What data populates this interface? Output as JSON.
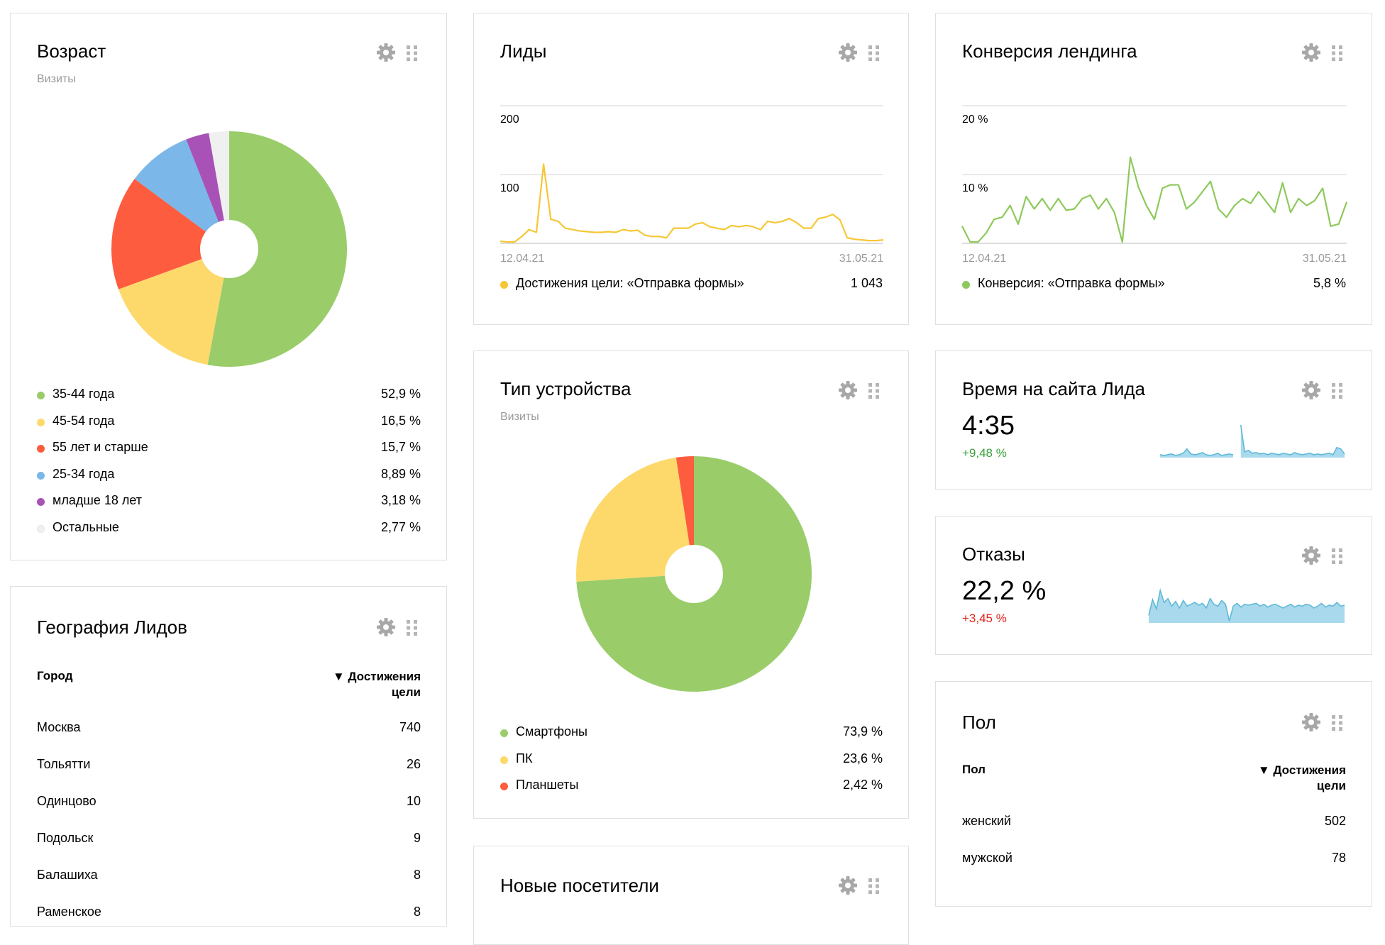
{
  "widgets": {
    "age": {
      "title": "Возраст",
      "subtitle": "Визиты",
      "chart_data": {
        "type": "pie",
        "categories": [
          "35-44 года",
          "45-54 года",
          "55 лет и старше",
          "25-34 года",
          "младше 18 лет",
          "Остальные"
        ],
        "values": [
          52.9,
          16.5,
          15.7,
          8.89,
          3.18,
          2.77
        ],
        "colors": [
          "#9acd6a",
          "#fdd96c",
          "#fd5c3f",
          "#7bb7e8",
          "#a852b8",
          "#f0f0f0"
        ]
      },
      "legend": [
        {
          "label": "35-44 года",
          "value": "52,9 %"
        },
        {
          "label": "45-54 года",
          "value": "16,5 %"
        },
        {
          "label": "55 лет и старше",
          "value": "15,7 %"
        },
        {
          "label": "25-34 года",
          "value": "8,89 %"
        },
        {
          "label": "младше 18 лет",
          "value": "3,18 %"
        },
        {
          "label": "Остальные",
          "value": "2,77 %"
        }
      ]
    },
    "geo": {
      "title": "География Лидов",
      "col_city": "Город",
      "col_goal_line1": "▼ Достижения",
      "col_goal_line2": "цели",
      "rows": [
        {
          "city": "Москва",
          "value": "740"
        },
        {
          "city": "Тольятти",
          "value": "26"
        },
        {
          "city": "Одинцово",
          "value": "10"
        },
        {
          "city": "Подольск",
          "value": "9"
        },
        {
          "city": "Балашиха",
          "value": "8"
        },
        {
          "city": "Раменское",
          "value": "8"
        }
      ]
    },
    "leads": {
      "title": "Лиды",
      "chart_data": {
        "type": "line",
        "y_ticks": [
          "200",
          "100"
        ],
        "ylim": [
          0,
          200
        ],
        "x_start": "12.04.21",
        "x_end": "31.05.21",
        "color": "#f6c735",
        "values": [
          3,
          2,
          2,
          10,
          20,
          16,
          115,
          35,
          32,
          22,
          20,
          18,
          17,
          16,
          16,
          17,
          16,
          20,
          18,
          19,
          12,
          10,
          10,
          8,
          22,
          22,
          22,
          28,
          30,
          24,
          22,
          20,
          26,
          24,
          26,
          24,
          20,
          32,
          30,
          32,
          36,
          30,
          22,
          22,
          36,
          38,
          42,
          34,
          8,
          6,
          5,
          4,
          4,
          5
        ]
      },
      "legend_label": "Достижения цели: «Отправка формы»",
      "legend_value": "1 043"
    },
    "conversion": {
      "title": "Конверсия лендинга",
      "chart_data": {
        "type": "line",
        "y_ticks": [
          "20 %",
          "10 %"
        ],
        "ylim": [
          0,
          20
        ],
        "x_start": "12.04.21",
        "x_end": "31.05.21",
        "color": "#8dc95a",
        "values": [
          2.5,
          0.2,
          0.2,
          1.5,
          3.5,
          3.8,
          5.5,
          2.8,
          6.8,
          5,
          6.5,
          4.8,
          6.5,
          4.8,
          5,
          6.5,
          7,
          5,
          6.5,
          4.5,
          0.2,
          12.5,
          8.2,
          5.5,
          3.5,
          8,
          8.5,
          8.5,
          5,
          6,
          7.5,
          9,
          5,
          3.8,
          5.5,
          6.5,
          5.8,
          7.5,
          6,
          4.5,
          8.8,
          4.5,
          6.5,
          5.5,
          6.2,
          8,
          2.5,
          2.8,
          6
        ]
      },
      "legend_label": "Конверсия: «Отправка формы»",
      "legend_value": "5,8 %"
    },
    "device": {
      "title": "Тип устройства",
      "subtitle": "Визиты",
      "chart_data": {
        "type": "pie",
        "categories": [
          "Смартфоны",
          "ПК",
          "Планшеты"
        ],
        "values": [
          73.9,
          23.6,
          2.42
        ],
        "colors": [
          "#9acd6a",
          "#fdd96c",
          "#fd5c3f"
        ]
      },
      "legend": [
        {
          "label": "Смартфоны",
          "value": "73,9 %"
        },
        {
          "label": "ПК",
          "value": "23,6 %"
        },
        {
          "label": "Планшеты",
          "value": "2,42 %"
        }
      ]
    },
    "time": {
      "title": "Время на сайта Лида",
      "value": "4:35",
      "delta": "+9,48 %",
      "delta_color": "#3aa33a",
      "chart_data": {
        "type": "area",
        "color": "#5fb9d8",
        "values": [
          0.4,
          0.3,
          0.4,
          0.5,
          0.3,
          0.4,
          0.6,
          1.2,
          0.5,
          0.4,
          0.5,
          0.7,
          0.4,
          0.3,
          0.4,
          0.6,
          0.3,
          0.4,
          0.5,
          0.4,
          null,
          4.5,
          0.8,
          1.0,
          0.6,
          0.7,
          0.5,
          0.6,
          0.4,
          0.6,
          0.5,
          0.4,
          0.6,
          0.5,
          0.4,
          0.7,
          0.5,
          0.4,
          0.5,
          0.6,
          0.4,
          0.5,
          0.4,
          0.5,
          0.6,
          0.4,
          1.4,
          1.2,
          0.5
        ]
      }
    },
    "bounce": {
      "title": "Отказы",
      "value": "22,2 %",
      "delta": "+3,45 %",
      "delta_color": "#e0251b",
      "chart_data": {
        "type": "area",
        "color": "#5fb9d8",
        "values": [
          0.8,
          2.5,
          1.5,
          3.5,
          2.2,
          2.6,
          1.8,
          2.3,
          1.6,
          2.4,
          1.8,
          2.0,
          2.2,
          1.9,
          2.1,
          1.6,
          2.6,
          2.0,
          1.8,
          2.4,
          2.0,
          0.2,
          1.8,
          2.1,
          1.7,
          2.0,
          1.9,
          2.0,
          2.1,
          1.8,
          2.0,
          1.7,
          1.9,
          2.0,
          1.8,
          1.6,
          1.8,
          2.0,
          1.7,
          1.9,
          1.8,
          2.0,
          1.9,
          1.6,
          1.8,
          2.1,
          1.7,
          1.9,
          1.8,
          2.2,
          1.8,
          1.9
        ]
      }
    },
    "gender": {
      "title": "Пол",
      "col_gender": "Пол",
      "col_goal_line1": "▼ Достижения",
      "col_goal_line2": "цели",
      "rows": [
        {
          "gender": "женский",
          "value": "502"
        },
        {
          "gender": "мужской",
          "value": "78"
        }
      ]
    },
    "new_visitors": {
      "title": "Новые посетители"
    }
  },
  "icons": {
    "settings": "gear-icon",
    "drag": "drag-handle-icon"
  }
}
